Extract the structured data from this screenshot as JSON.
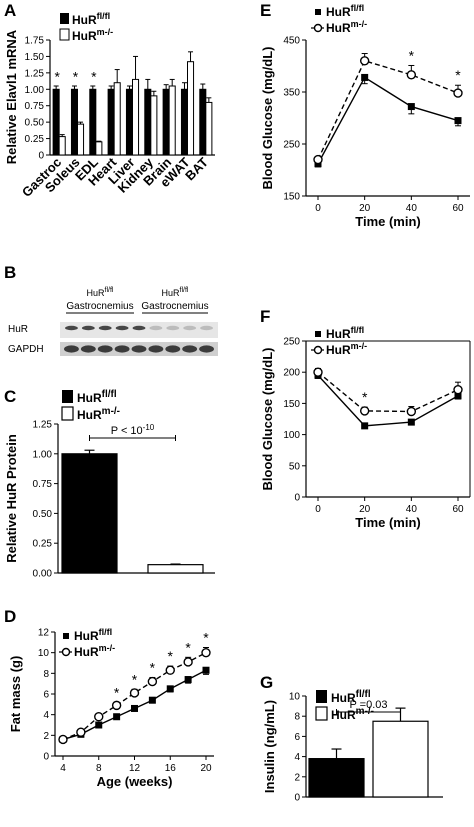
{
  "panel_labels": {
    "A": "A",
    "B": "B",
    "C": "C",
    "D": "D",
    "E": "E",
    "F": "F",
    "G": "G"
  },
  "colors": {
    "ctrl": "#000000",
    "ko": "#ffffff",
    "line": "#000000",
    "band": "#2a2a2a"
  },
  "chart_data": [
    {
      "id": "A",
      "type": "bar",
      "ylabel": "Relative Elavl1 mRNA",
      "ylim": [
        0,
        1.75
      ],
      "yticks": [
        "0",
        "0.25",
        "0.50",
        "0.75",
        "1.00",
        "1.25",
        "1.50",
        "1.75"
      ],
      "categories": [
        "Gastroc",
        "Soleus",
        "EDL",
        "Heart",
        "Liver",
        "Kidney",
        "Brain",
        "eWAT",
        "BAT"
      ],
      "series": [
        {
          "name": "HuR",
          "sup": "fl/fl",
          "values": [
            1.0,
            1.0,
            1.0,
            1.0,
            1.0,
            1.0,
            1.0,
            1.0,
            1.0
          ],
          "errors": [
            0.05,
            0.05,
            0.05,
            0.05,
            0.05,
            0.15,
            0.07,
            0.1,
            0.08
          ]
        },
        {
          "name": "HuR",
          "sup": "m-/-",
          "values": [
            0.28,
            0.47,
            0.2,
            1.1,
            1.15,
            0.9,
            1.05,
            1.42,
            0.8
          ],
          "errors": [
            0.03,
            0.03,
            0.01,
            0.2,
            0.35,
            0.07,
            0.1,
            0.15,
            0.07
          ]
        }
      ],
      "stars": [
        "*",
        "*",
        "*"
      ],
      "star_categories": [
        "Gastroc",
        "Soleus",
        "EDL"
      ]
    },
    {
      "id": "B",
      "type": "blot",
      "groups": [
        {
          "name": "HuR",
          "sup": "fl/fl",
          "sub": "Gastrocnemius"
        },
        {
          "name": "HuR",
          "sup": "fl/fl",
          "sub": "Gastrocnemius"
        }
      ],
      "row_labels": [
        "HuR",
        "GAPDH"
      ]
    },
    {
      "id": "C",
      "type": "bar",
      "ylabel": "Relative HuR Protein",
      "ylim": [
        0,
        1.25
      ],
      "yticks": [
        "0.00",
        "0.25",
        "0.50",
        "0.75",
        "1.00",
        "1.25"
      ],
      "series": [
        {
          "name": "HuR",
          "sup": "fl/fl",
          "value": 1.0,
          "error": 0.03
        },
        {
          "name": "HuR",
          "sup": "m-/-",
          "value": 0.07,
          "error": 0.005
        }
      ],
      "pvalue": "P < 10",
      "pvalue_exp": "-10"
    },
    {
      "id": "D",
      "type": "line",
      "xlabel": "Age (weeks)",
      "ylabel": "Fat mass (g)",
      "xlim": [
        4,
        20
      ],
      "ylim": [
        0,
        12
      ],
      "xticks": [
        "4",
        "8",
        "12",
        "16",
        "20"
      ],
      "yticks": [
        "0",
        "2",
        "4",
        "6",
        "8",
        "10",
        "12"
      ],
      "x": [
        4,
        6,
        8,
        10,
        12,
        14,
        16,
        18,
        20
      ],
      "series": [
        {
          "name": "HuR",
          "sup": "fl/fl",
          "values": [
            1.6,
            2.1,
            3.0,
            3.8,
            4.6,
            5.4,
            6.5,
            7.4,
            8.3
          ],
          "errors": [
            0.1,
            0.15,
            0.2,
            0.2,
            0.25,
            0.25,
            0.3,
            0.35,
            0.4
          ]
        },
        {
          "name": "HuR",
          "sup": "m-/-",
          "values": [
            1.6,
            2.3,
            3.8,
            4.9,
            6.1,
            7.2,
            8.3,
            9.1,
            10.0
          ],
          "errors": [
            0.1,
            0.15,
            0.25,
            0.3,
            0.35,
            0.4,
            0.4,
            0.45,
            0.5
          ]
        }
      ],
      "stars": [
        "*",
        "*",
        "*",
        "*",
        "*",
        "*"
      ],
      "star_x": [
        10,
        12,
        14,
        16,
        18,
        20
      ]
    },
    {
      "id": "E",
      "type": "line",
      "xlabel": "Time (min)",
      "ylabel": "Blood Glucose (mg/dL)",
      "xlim": [
        0,
        60
      ],
      "ylim": [
        150,
        450
      ],
      "xticks": [
        "0",
        "20",
        "40",
        "60"
      ],
      "yticks": [
        "150",
        "250",
        "350",
        "450"
      ],
      "x": [
        0,
        20,
        40,
        60
      ],
      "series": [
        {
          "name": "HuR",
          "sup": "fl/fl",
          "values": [
            212,
            378,
            322,
            295
          ],
          "errors": [
            6,
            12,
            14,
            10
          ]
        },
        {
          "name": "HuR",
          "sup": "m-/-",
          "values": [
            220,
            410,
            383,
            348
          ],
          "errors": [
            6,
            14,
            18,
            15
          ]
        }
      ],
      "stars": [
        "*",
        "*"
      ],
      "star_x": [
        40,
        60
      ]
    },
    {
      "id": "F",
      "type": "line",
      "xlabel": "Time (min)",
      "ylabel": "Blood Glucose (mg/dL)",
      "xlim": [
        0,
        60
      ],
      "ylim": [
        0,
        250
      ],
      "xticks": [
        "0",
        "20",
        "40",
        "60"
      ],
      "yticks": [
        "0",
        "50",
        "100",
        "150",
        "200",
        "250"
      ],
      "x": [
        0,
        20,
        40,
        60
      ],
      "series": [
        {
          "name": "HuR",
          "sup": "fl/fl",
          "values": [
            195,
            114,
            120,
            162
          ],
          "errors": [
            5,
            3,
            4,
            5
          ]
        },
        {
          "name": "HuR",
          "sup": "m-/-",
          "values": [
            200,
            138,
            137,
            172
          ],
          "errors": [
            6,
            6,
            8,
            12
          ]
        }
      ],
      "stars": [
        "*"
      ],
      "star_x": [
        20
      ]
    },
    {
      "id": "G",
      "type": "bar",
      "ylabel": "Insulin (ng/mL)",
      "ylim": [
        0,
        10
      ],
      "yticks": [
        "0",
        "2",
        "4",
        "6",
        "8",
        "10"
      ],
      "series": [
        {
          "name": "HuR",
          "sup": "fl/fl",
          "value": 3.8,
          "error": 0.95
        },
        {
          "name": "HuR",
          "sup": "m-/-",
          "value": 7.5,
          "error": 1.3
        }
      ],
      "pvalue": "P =0.03"
    }
  ]
}
